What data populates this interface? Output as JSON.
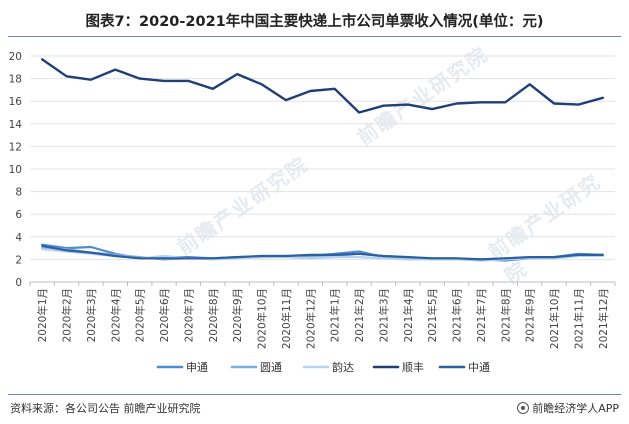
{
  "header": {
    "title": "图表7：2020-2021年中国主要快递上市公司单票收入情况(单位：元)"
  },
  "footer": {
    "source": "资料来源：各公司公告 前瞻产业研究院",
    "brand": "前瞻经济学人APP"
  },
  "watermark": {
    "text": "前瞻产业研究院"
  },
  "chart_data": {
    "type": "line",
    "title": "图表7：2020-2021年中国主要快递上市公司单票收入情况(单位：元)",
    "xlabel": "",
    "ylabel": "",
    "ylim": [
      0,
      20
    ],
    "yticks": [
      0,
      2,
      4,
      6,
      8,
      10,
      12,
      14,
      16,
      18,
      20
    ],
    "grid": true,
    "legend_position": "bottom",
    "categories": [
      "2020年1月",
      "2020年2月",
      "2020年3月",
      "2020年4月",
      "2020年5月",
      "2020年6月",
      "2020年7月",
      "2020年8月",
      "2020年9月",
      "2020年10月",
      "2020年11月",
      "2020年12月",
      "2021年1月",
      "2021年2月",
      "2021年3月",
      "2021年4月",
      "2021年5月",
      "2021年6月",
      "2021年7月",
      "2021年8月",
      "2021年9月",
      "2021年10月",
      "2021年11月",
      "2021年12月"
    ],
    "series": [
      {
        "name": "申通",
        "color": "#4f8ad6",
        "values": [
          3.3,
          3.0,
          3.1,
          2.5,
          2.1,
          2.2,
          2.2,
          2.1,
          2.2,
          2.2,
          2.3,
          2.3,
          2.5,
          2.7,
          2.2,
          2.1,
          2.1,
          2.0,
          2.0,
          1.9,
          2.1,
          2.2,
          2.5,
          2.4
        ]
      },
      {
        "name": "圆通",
        "color": "#7fabe3",
        "values": [
          3.0,
          2.9,
          2.6,
          2.4,
          2.2,
          2.0,
          2.1,
          2.1,
          2.2,
          2.3,
          2.3,
          2.2,
          2.3,
          2.5,
          2.3,
          2.2,
          2.1,
          2.1,
          2.0,
          2.1,
          2.2,
          2.2,
          2.4,
          2.4
        ]
      },
      {
        "name": "韵达",
        "color": "#b5d2f2",
        "values": [
          2.9,
          2.7,
          2.5,
          2.3,
          2.1,
          2.3,
          2.1,
          2.0,
          2.1,
          2.2,
          2.2,
          2.1,
          2.2,
          2.2,
          2.1,
          2.0,
          2.0,
          2.0,
          1.9,
          2.0,
          2.1,
          2.1,
          2.3,
          2.3
        ]
      },
      {
        "name": "顺丰",
        "color": "#1f3f76",
        "values": [
          19.7,
          18.2,
          17.9,
          18.8,
          18.0,
          17.8,
          17.8,
          17.1,
          18.4,
          17.5,
          16.1,
          16.9,
          17.1,
          15.0,
          15.6,
          15.7,
          15.3,
          15.8,
          15.9,
          15.9,
          17.5,
          15.8,
          15.7,
          16.3
        ]
      },
      {
        "name": "中通",
        "color": "#2c5f9e",
        "values": [
          3.2,
          2.8,
          2.6,
          2.3,
          2.1,
          2.1,
          2.1,
          2.1,
          2.2,
          2.3,
          2.3,
          2.4,
          2.4,
          2.5,
          2.3,
          2.2,
          2.1,
          2.1,
          2.0,
          2.1,
          2.2,
          2.2,
          2.4,
          2.4
        ]
      }
    ]
  }
}
